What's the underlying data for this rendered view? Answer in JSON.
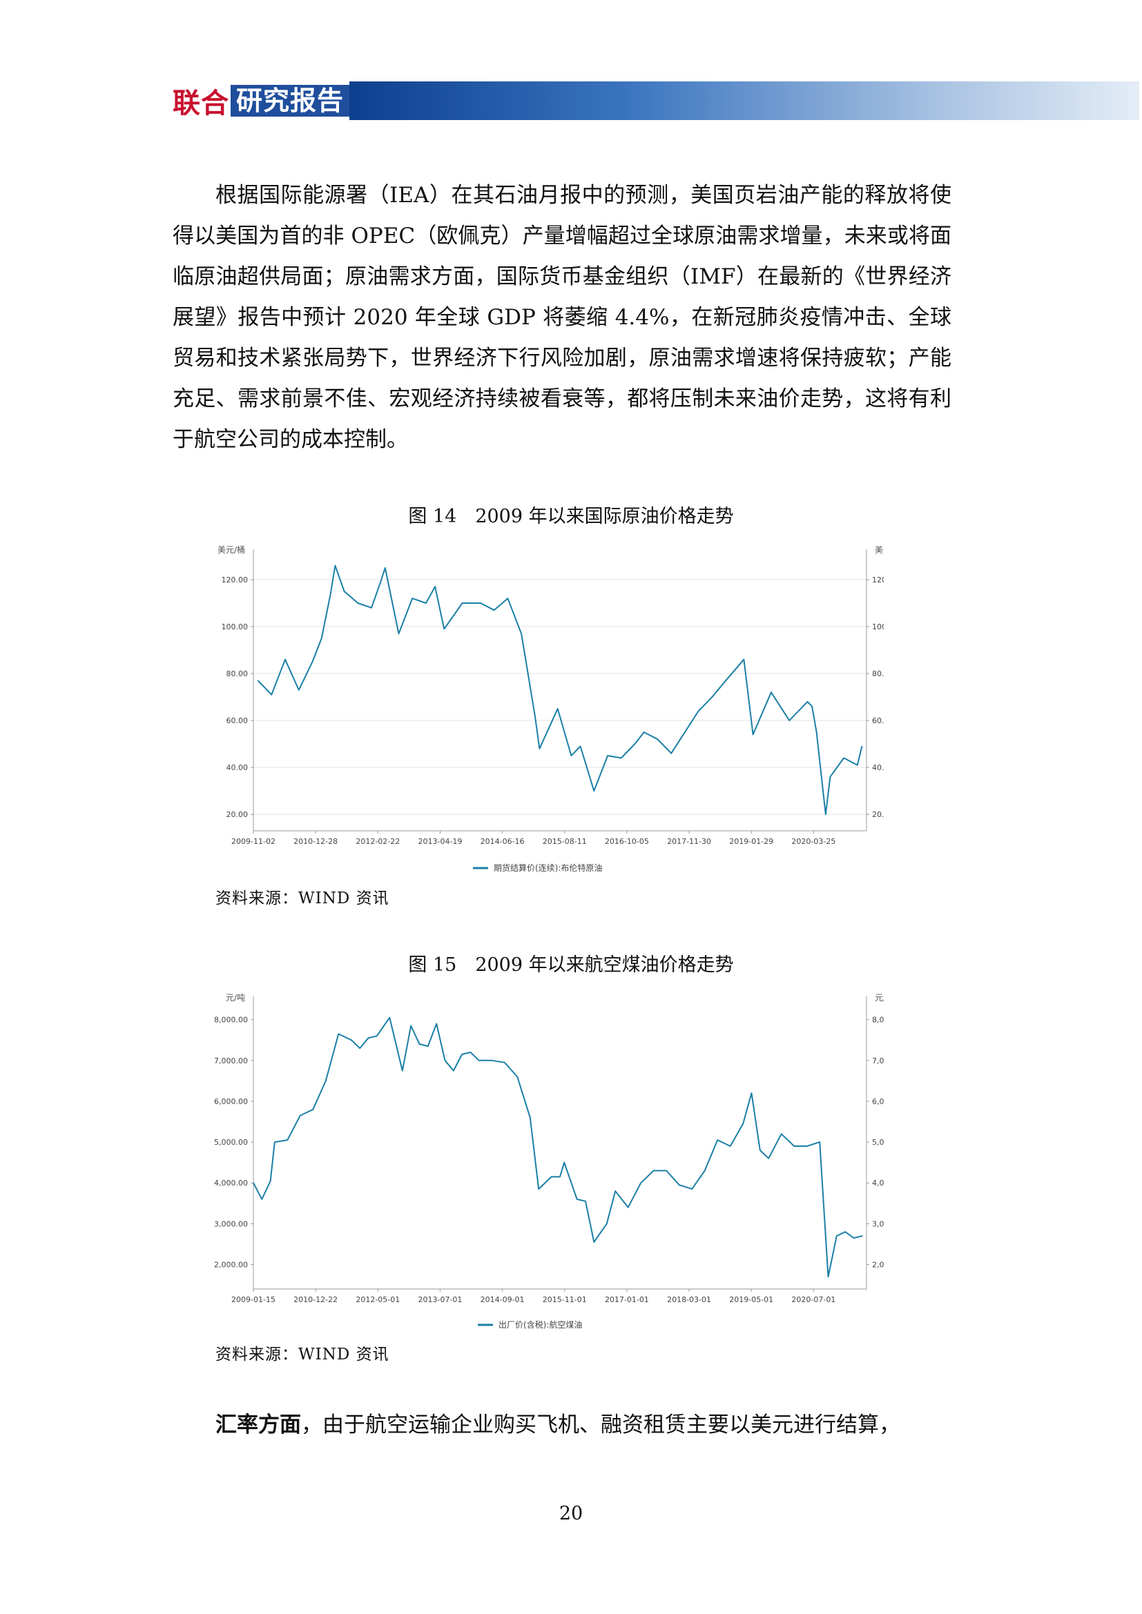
{
  "header": {
    "brand_red": "联合",
    "brand_box": "研究报告"
  },
  "paragraph1": "根据国际能源署（IEA）在其石油月报中的预测，美国页岩油产能的释放将使得以美国为首的非 OPEC（欧佩克）产量增幅超过全球原油需求增量，未来或将面临原油超供局面；原油需求方面，国际货币基金组织（IMF）在最新的《世界经济展望》报告中预计 2020 年全球 GDP 将萎缩 4.4%，在新冠肺炎疫情冲击、全球贸易和技术紧张局势下，世界经济下行风险加剧，原油需求增速将保持疲软；产能充足、需求前景不佳、宏观经济持续被看衰等，都将压制未来油价走势，这将有利于航空公司的成本控制。",
  "figure14": {
    "caption": "图 14　2009 年以来国际原油价格走势",
    "source": "资料来源：WIND 资讯"
  },
  "figure15": {
    "caption": "图 15　2009 年以来航空煤油价格走势",
    "source": "资料来源：WIND 资讯"
  },
  "paragraph2": {
    "lead": "汇率方面",
    "text": "，由于航空运输企业购买飞机、融资租赁主要以美元进行结算，"
  },
  "page_number": "20",
  "chart_data": [
    {
      "type": "line",
      "ylabel_left": "美元/桶",
      "ylabel_right": "美元/桶",
      "ylim": [
        13,
        130
      ],
      "yticks": [
        "20.00",
        "40.00",
        "60.00",
        "80.00",
        "100.00",
        "120.00"
      ],
      "xticks": [
        "2009-11-02",
        "2010-12-28",
        "2012-02-22",
        "2013-04-19",
        "2014-06-16",
        "2015-08-11",
        "2016-10-05",
        "2017-11-30",
        "2019-01-29",
        "2020-03-25"
      ],
      "color": "#1a7fa6",
      "grid": true,
      "legend_position": "bottom",
      "series": [
        {
          "name": "期货结算价(连续):布伦特原油",
          "x": [
            "2009-11",
            "2010-02",
            "2010-05",
            "2010-08",
            "2010-11",
            "2011-01",
            "2011-03",
            "2011-04",
            "2011-06",
            "2011-09",
            "2011-12",
            "2012-02",
            "2012-03",
            "2012-06",
            "2012-09",
            "2012-12",
            "2013-02",
            "2013-04",
            "2013-08",
            "2013-12",
            "2014-03",
            "2014-06",
            "2014-09",
            "2014-12",
            "2015-01",
            "2015-05",
            "2015-08",
            "2015-10",
            "2016-01",
            "2016-04",
            "2016-07",
            "2016-10",
            "2016-12",
            "2017-03",
            "2017-06",
            "2017-09",
            "2017-12",
            "2018-03",
            "2018-06",
            "2018-10",
            "2018-12",
            "2019-04",
            "2019-08",
            "2019-12",
            "2020-01",
            "2020-02",
            "2020-04",
            "2020-05",
            "2020-08",
            "2020-11",
            "2020-12"
          ],
          "values": [
            77,
            71,
            86,
            73,
            85,
            95,
            114,
            126,
            115,
            110,
            108,
            119,
            125,
            97,
            112,
            110,
            117,
            99,
            110,
            110,
            107,
            112,
            97,
            62,
            48,
            65,
            45,
            49,
            30,
            45,
            44,
            50,
            55,
            52,
            46,
            55,
            64,
            70,
            77,
            86,
            54,
            72,
            60,
            68,
            66,
            55,
            20,
            36,
            44,
            41,
            49
          ]
        }
      ]
    },
    {
      "type": "line",
      "ylabel_left": "元/吨",
      "ylabel_right": "元/吨",
      "ylim": [
        1400,
        8400
      ],
      "yticks": [
        "2,000.00",
        "3,000.00",
        "4,000.00",
        "5,000.00",
        "6,000.00",
        "7,000.00",
        "8,000.00"
      ],
      "xticks": [
        "2009-01-15",
        "2010-12-22",
        "2012-05-01",
        "2013-07-01",
        "2014-09-01",
        "2015-11-01",
        "2017-01-01",
        "2018-03-01",
        "2019-05-01",
        "2020-07-01"
      ],
      "color": "#1a7fa6",
      "grid": false,
      "legend_position": "bottom",
      "series": [
        {
          "name": "出厂价(含税):航空煤油",
          "x": [
            "2009-01",
            "2009-03",
            "2009-05",
            "2009-06",
            "2009-09",
            "2009-12",
            "2010-03",
            "2010-06",
            "2010-09",
            "2010-12",
            "2011-02",
            "2011-04",
            "2011-06",
            "2011-09",
            "2011-12",
            "2012-02",
            "2012-04",
            "2012-06",
            "2012-08",
            "2012-10",
            "2012-12",
            "2013-02",
            "2013-04",
            "2013-06",
            "2013-09",
            "2013-12",
            "2014-03",
            "2014-06",
            "2014-08",
            "2014-11",
            "2015-01",
            "2015-02",
            "2015-05",
            "2015-07",
            "2015-09",
            "2015-12",
            "2016-02",
            "2016-05",
            "2016-08",
            "2016-11",
            "2017-02",
            "2017-05",
            "2017-08",
            "2017-11",
            "2018-02",
            "2018-05",
            "2018-08",
            "2018-10",
            "2018-12",
            "2019-02",
            "2019-05",
            "2019-08",
            "2019-11",
            "2020-02",
            "2020-04",
            "2020-06",
            "2020-08",
            "2020-10",
            "2020-12"
          ],
          "values": [
            4000,
            3600,
            4050,
            5000,
            5050,
            5650,
            5800,
            6500,
            7650,
            7500,
            7300,
            7550,
            7600,
            8050,
            6750,
            7850,
            7400,
            7350,
            7900,
            7000,
            6750,
            7150,
            7200,
            7000,
            7000,
            6950,
            6600,
            5600,
            3850,
            4150,
            4150,
            4500,
            3600,
            3550,
            2550,
            3000,
            3800,
            3400,
            4000,
            4300,
            4300,
            3950,
            3850,
            4300,
            5050,
            4900,
            5450,
            6200,
            4800,
            4600,
            5200,
            4900,
            4900,
            5000,
            1700,
            2700,
            2800,
            2650,
            2700
          ]
        }
      ]
    }
  ]
}
